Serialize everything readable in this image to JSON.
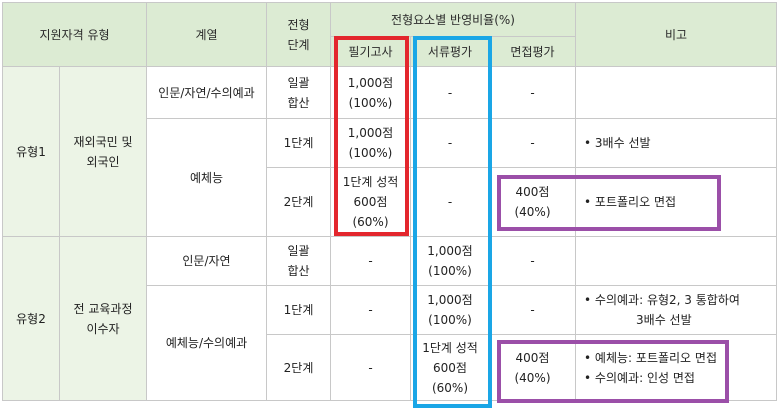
{
  "header": {
    "qualification_type": "지원자격 유형",
    "field": "계열",
    "stage_line1": "전형",
    "stage_line2": "단계",
    "ratio_title": "전형요소별 반영비율(%)",
    "written": "필기고사",
    "document": "서류평가",
    "interview": "면접평가",
    "remarks": "비고"
  },
  "rows": {
    "type1": "유형1",
    "type1_group": [
      "재외국민 및",
      "외국인"
    ],
    "type2": "유형2",
    "type2_group": [
      "전 교육과정",
      "이수자"
    ],
    "r1": {
      "field": "인문/자연/수의예과",
      "stage": [
        "일괄",
        "합산"
      ],
      "written": [
        "1,000점",
        "(100%)"
      ],
      "document": "-",
      "interview": "-",
      "note": ""
    },
    "r2": {
      "stage": "1단계",
      "written": [
        "1,000점",
        "(100%)"
      ],
      "document": "-",
      "interview": "-",
      "note": "• 3배수 선발"
    },
    "r23_field": "예체능",
    "r3": {
      "stage": "2단계",
      "written": [
        "1단계 성적",
        "600점",
        "(60%)"
      ],
      "document": "-",
      "interview": [
        "400점",
        "(40%)"
      ],
      "note": "• 포트폴리오 면접"
    },
    "r4": {
      "field": "인문/자연",
      "stage": [
        "일괄",
        "합산"
      ],
      "written": "-",
      "document": [
        "1,000점",
        "(100%)"
      ],
      "interview": "-",
      "note": ""
    },
    "r5": {
      "stage": "1단계",
      "written": "-",
      "document": [
        "1,000점",
        "(100%)"
      ],
      "interview": "-",
      "note": [
        "• 수의예과: 유형2, 3 통합하여",
        "3배수 선발"
      ]
    },
    "r56_field": "예체능/수의예과",
    "r6": {
      "stage": "2단계",
      "written": "-",
      "document": [
        "1단계 성적",
        "600점",
        "(60%)"
      ],
      "interview": [
        "400점",
        "(40%)"
      ],
      "note": [
        "• 예체능: 포트폴리오 면접",
        "• 수의예과: 인성 면접"
      ]
    }
  },
  "colors": {
    "header_bg": "#dcebd3",
    "type_bg": "#ecf4e6",
    "highlight_written": "#e3262d",
    "highlight_document": "#1aa6e6",
    "highlight_interview": "#9b4fa8"
  }
}
